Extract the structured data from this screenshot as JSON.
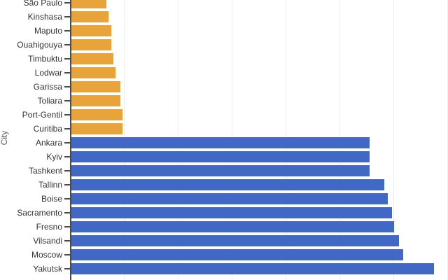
{
  "colors": {
    "background": "#ffffff",
    "warm_bar": "#E8A33B",
    "cold_bar": "#4268C6",
    "gridline": "#ededed",
    "axis_line": "#4a4a4a",
    "tick_label": "#333333",
    "axis_title": "#555555"
  },
  "chart_data": {
    "type": "bar",
    "orientation": "horizontal",
    "title": "",
    "xlabel": "",
    "ylabel": "City",
    "xlim": [
      0,
      70
    ],
    "x_gridline_interval": 10,
    "grid": true,
    "legend_position": "none",
    "values_note": "x-axis tick labels are cropped out of the visible image; values estimated in gridline units (1 gridline = 10)",
    "categories": [
      "São Paulo",
      "Kinshasa",
      "Maputo",
      "Ouahigouya",
      "Timbuktu",
      "Lodwar",
      "Garissa",
      "Toliara",
      "Port-Gentil",
      "Curitiba",
      "Ankara",
      "Kyiv",
      "Tashkent",
      "Tallinn",
      "Boise",
      "Sacramento",
      "Fresno",
      "Vilsandi",
      "Moscow",
      "Yakutsk"
    ],
    "values": [
      6.8,
      7.2,
      7.6,
      7.6,
      8.1,
      8.4,
      9.4,
      9.4,
      9.7,
      9.7,
      55.6,
      55.6,
      55.6,
      58.3,
      58.9,
      59.7,
      60.1,
      61.1,
      61.8,
      67.5
    ],
    "bar_colors": [
      "#E8A33B",
      "#E8A33B",
      "#E8A33B",
      "#E8A33B",
      "#E8A33B",
      "#E8A33B",
      "#E8A33B",
      "#E8A33B",
      "#E8A33B",
      "#E8A33B",
      "#4268C6",
      "#4268C6",
      "#4268C6",
      "#4268C6",
      "#4268C6",
      "#4268C6",
      "#4268C6",
      "#4268C6",
      "#4268C6",
      "#4268C6"
    ]
  }
}
